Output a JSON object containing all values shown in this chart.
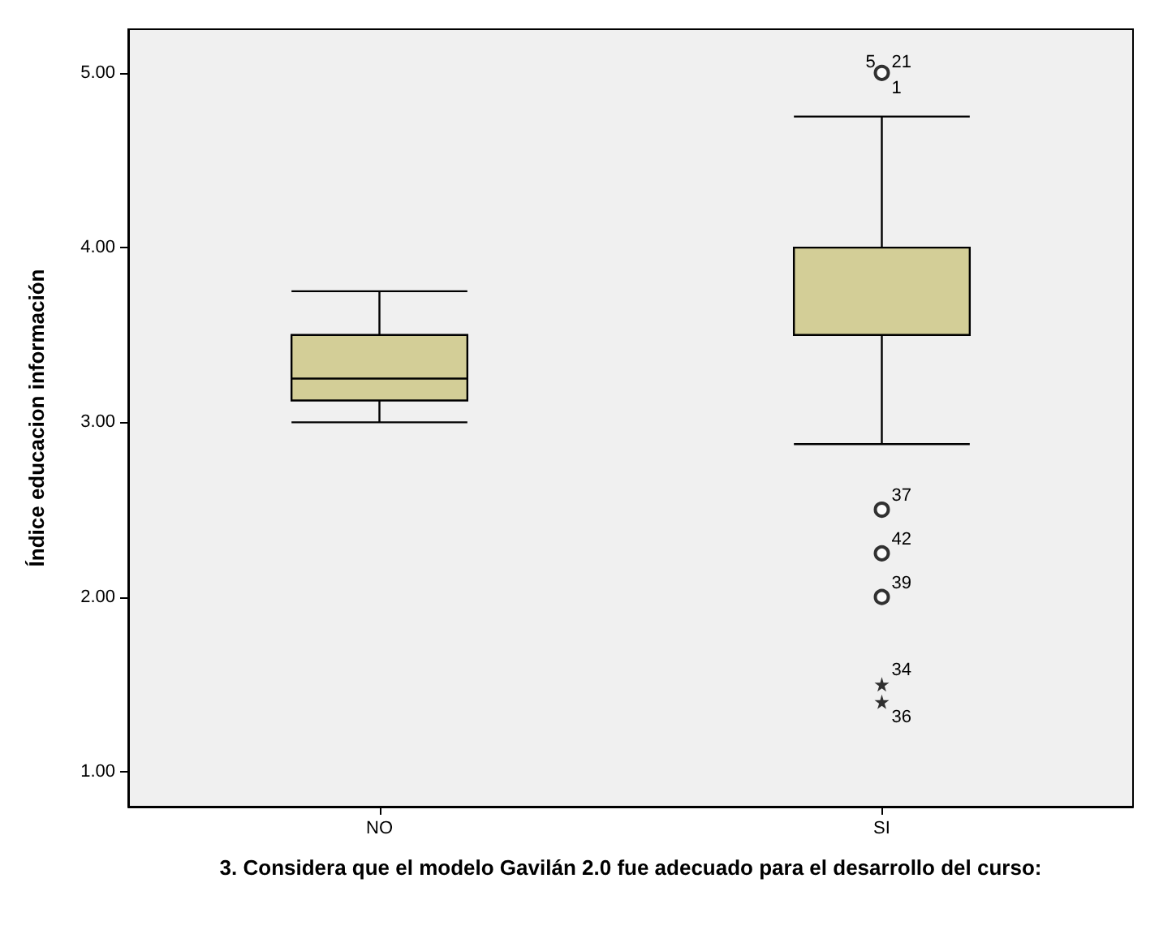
{
  "chart_data": {
    "type": "box",
    "xlabel": "3. Considera que el modelo Gavilán 2.0 fue adecuado para el desarrollo del curso:",
    "ylabel": "Índice educacion información",
    "categories": [
      "NO",
      "SI"
    ],
    "series": [
      {
        "color": "#d3ce97",
        "boxes": [
          {
            "low": 3.0,
            "q1": 3.125,
            "median": 3.25,
            "q3": 3.5,
            "high": 3.75
          },
          {
            "low": 2.875,
            "q1": 3.5,
            "median": 4.0,
            "q3": 4.0,
            "high": 4.75
          }
        ]
      },
      {
        "type": "scatter",
        "marker": "circle",
        "color": "#000000",
        "x": [
          "SI",
          "SI",
          "SI",
          "SI"
        ],
        "values": [
          5.0,
          2.5,
          2.25,
          2.0
        ]
      },
      {
        "type": "scatter",
        "marker": "star",
        "color": "#000000",
        "x": [
          "SI",
          "SI"
        ],
        "values": [
          1.5,
          1.4
        ]
      }
    ],
    "ylim": [
      0.8,
      5.25
    ],
    "yticks": [
      {
        "value": 1,
        "label": "1.00"
      },
      {
        "value": 2,
        "label": "2.00"
      },
      {
        "value": 3,
        "label": "3.00"
      },
      {
        "value": 4,
        "label": "4.00"
      },
      {
        "value": 5,
        "label": "5.00"
      }
    ],
    "grid": false,
    "annotations": [
      {
        "text": "5",
        "x": "SI",
        "y": 5.0
      },
      {
        "text": "21",
        "x": "SI",
        "y": 5.0
      },
      {
        "text": "1",
        "x": "SI",
        "y": 5.0
      },
      {
        "text": "37",
        "x": "SI",
        "y": 2.5
      },
      {
        "text": "42",
        "x": "SI",
        "y": 2.25
      },
      {
        "text": "39",
        "x": "SI",
        "y": 2.0
      },
      {
        "text": "34",
        "x": "SI",
        "y": 1.5
      },
      {
        "text": "36",
        "x": "SI",
        "y": 1.4
      }
    ]
  }
}
